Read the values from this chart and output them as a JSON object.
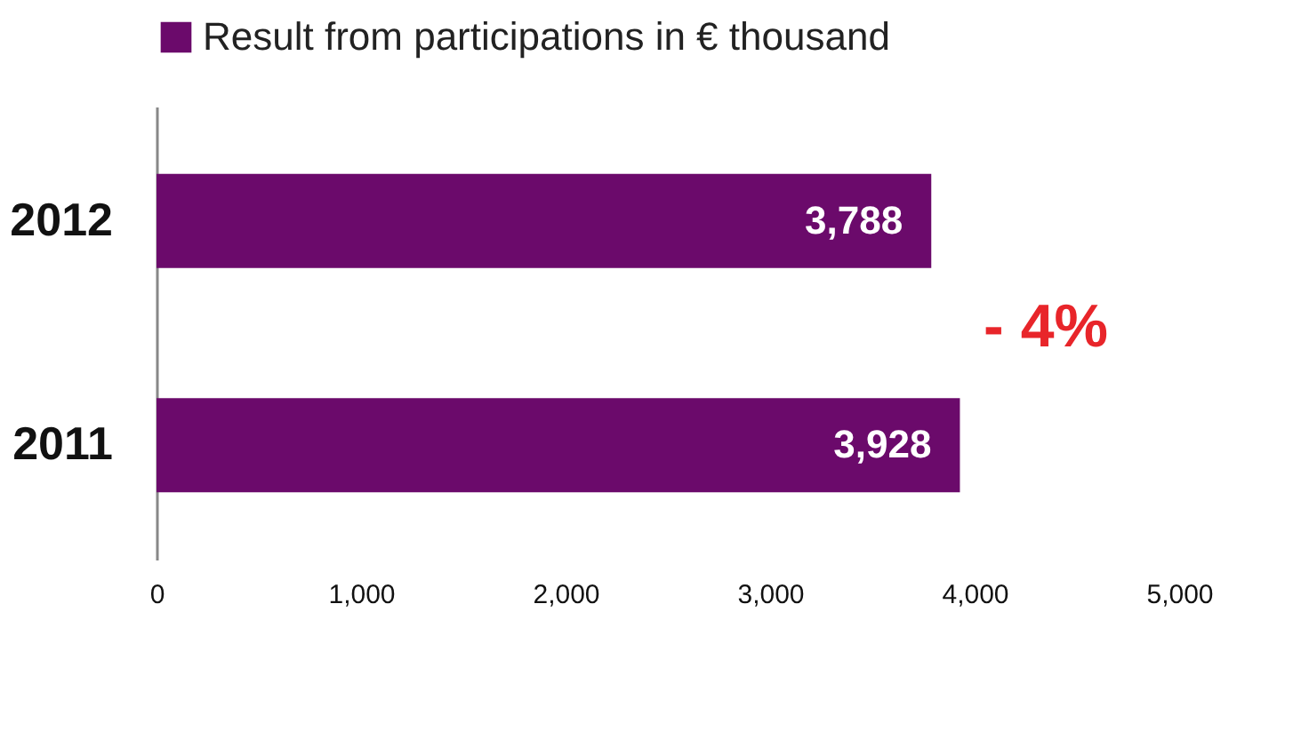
{
  "chart_data": {
    "type": "bar",
    "orientation": "horizontal",
    "categories": [
      "2012",
      "2011"
    ],
    "series": [
      {
        "name": "Result from participations in € thousand",
        "color": "#6b0a6b",
        "values": [
          3788,
          3928
        ],
        "value_labels": [
          "3,788",
          "3,928"
        ]
      }
    ],
    "xlim": [
      0,
      5000
    ],
    "xticks": [
      0,
      {
        "value": 1000,
        "label": "1,000"
      },
      {
        "value": 2000,
        "label": "2,000"
      },
      {
        "value": 3000,
        "label": "3,000"
      },
      {
        "value": 4000,
        "label": "4,000"
      },
      {
        "value": 5000,
        "label": "5,000"
      }
    ],
    "annotations": [
      "- 4%"
    ],
    "legend": "top",
    "grid": false
  }
}
